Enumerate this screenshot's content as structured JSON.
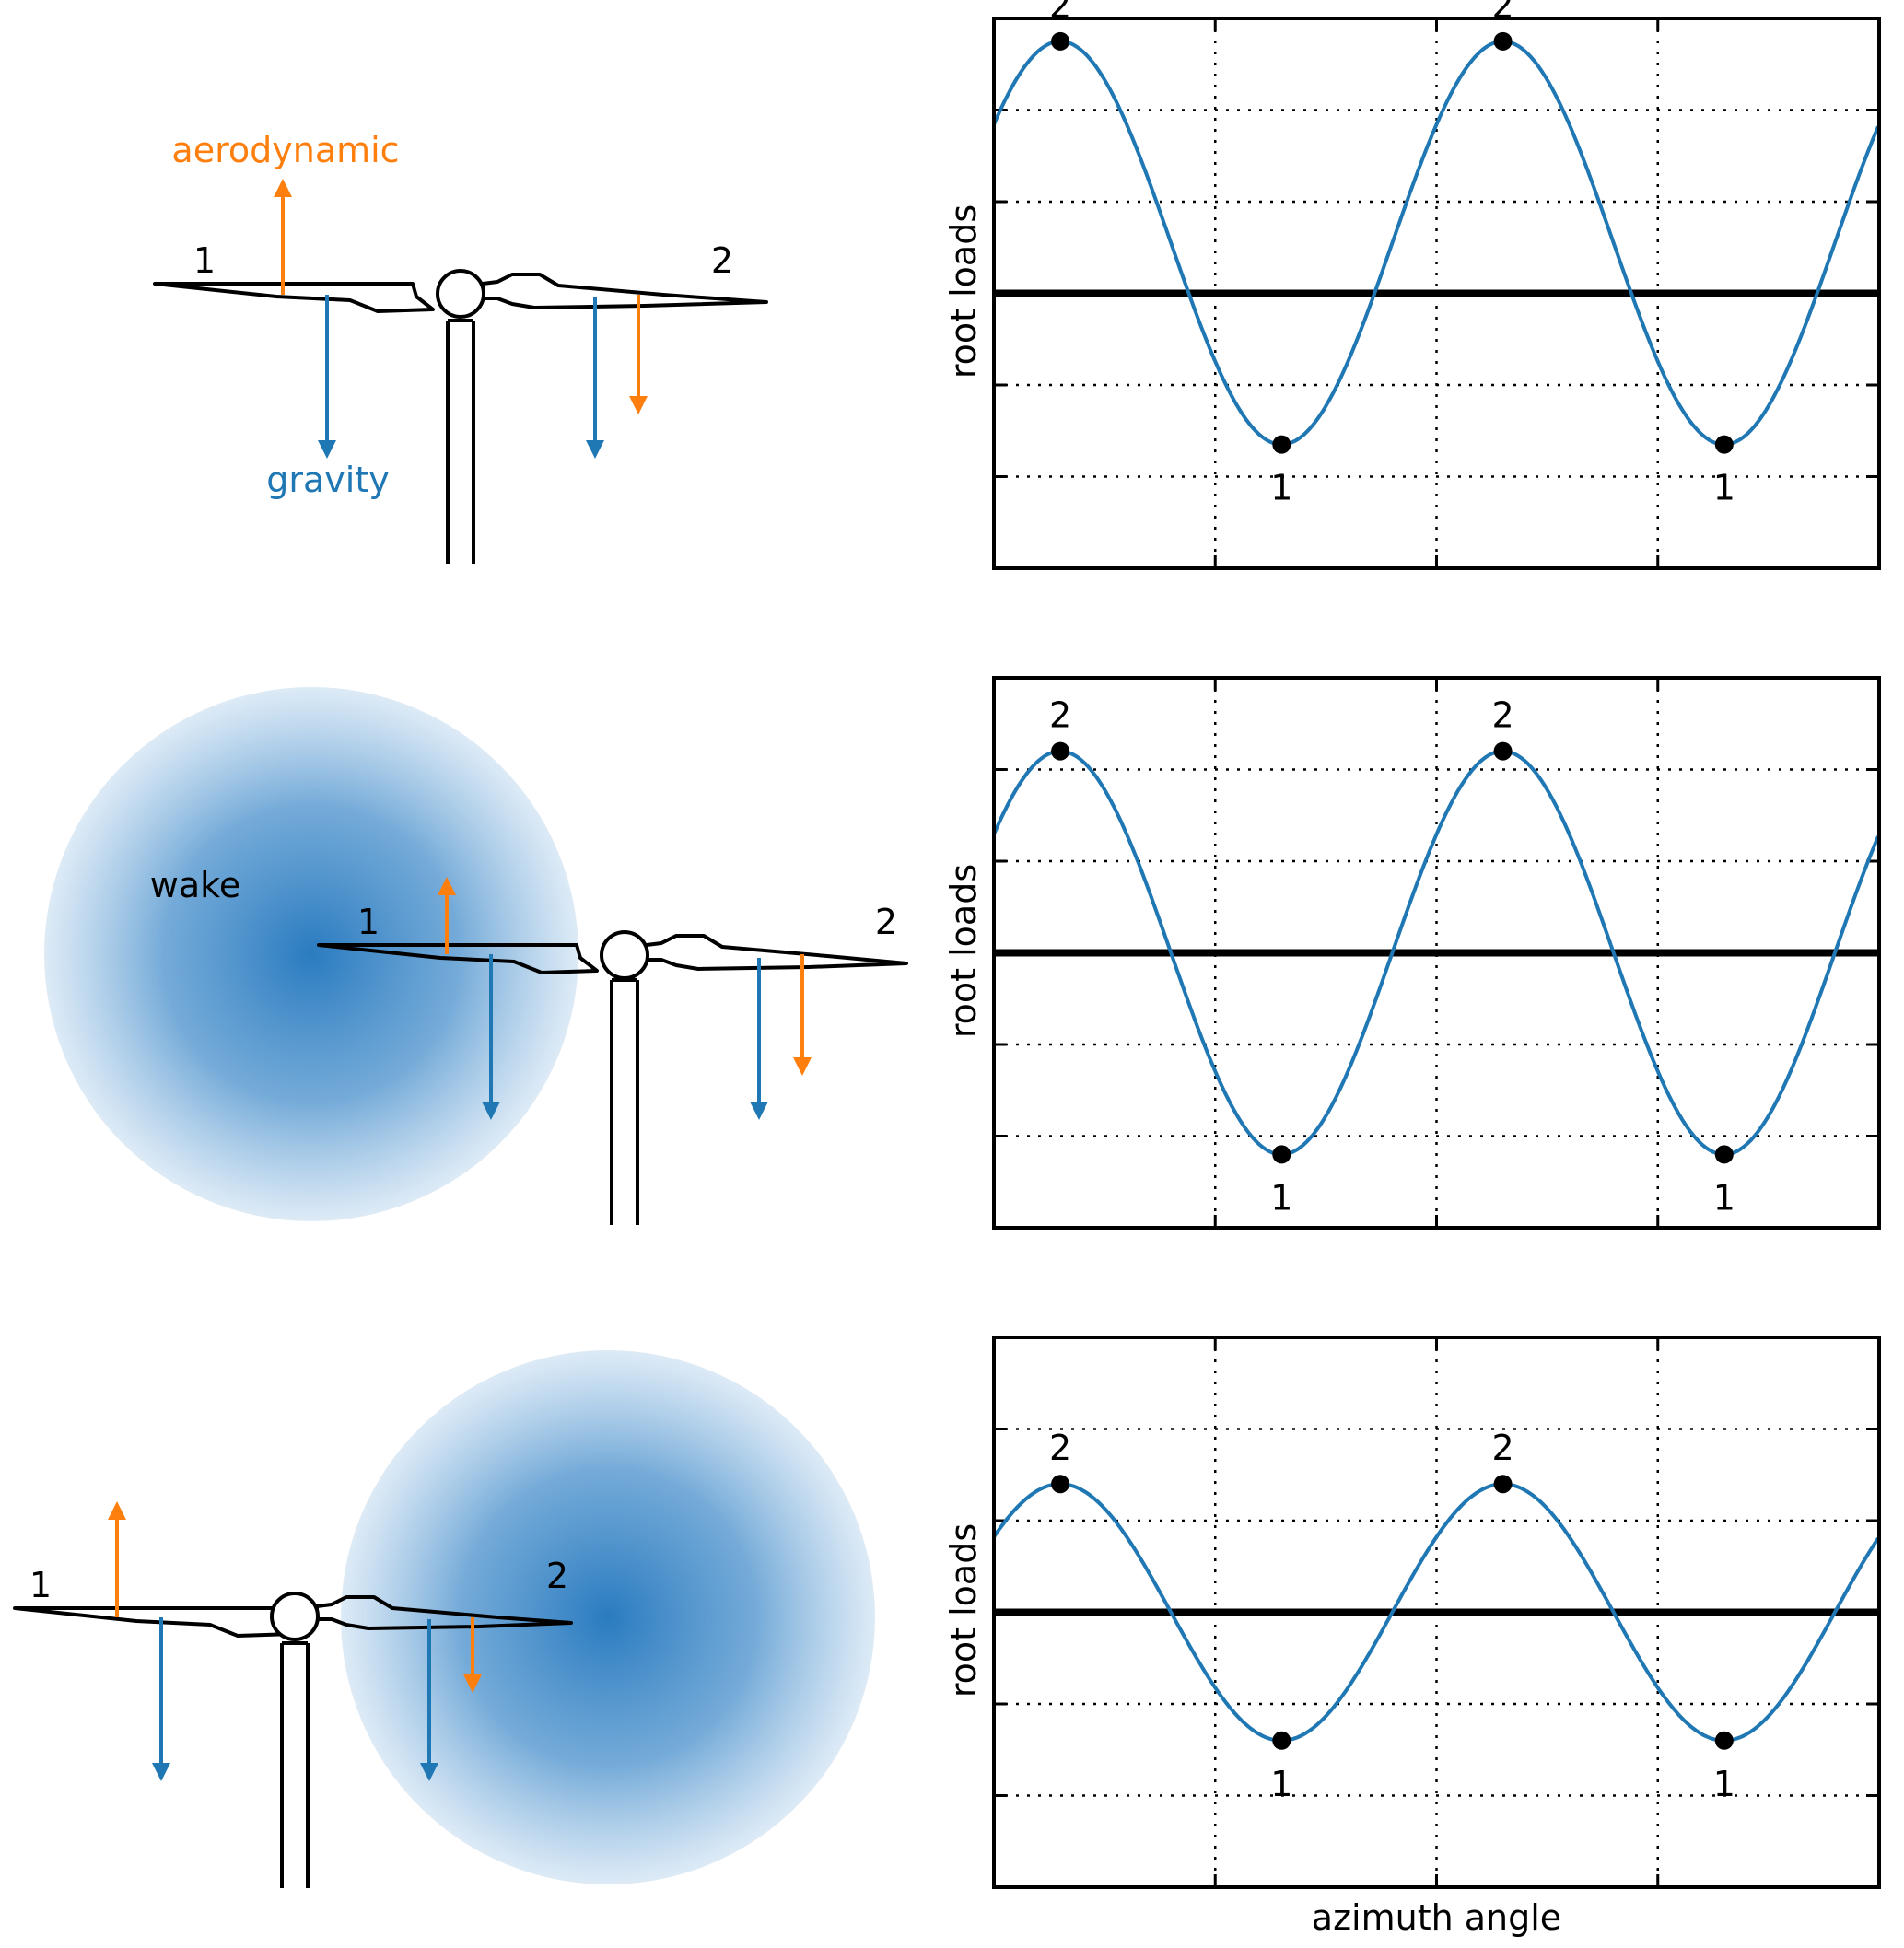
{
  "colors": {
    "aerodynamic": "#ff7f0e",
    "gravity": "#1f77b4",
    "signal": "#1f77b4",
    "ink": "#000000",
    "wake_core": "#2a7bc0"
  },
  "labels": {
    "aerodynamic": "aerodynamic",
    "gravity": "gravity",
    "wake": "wake",
    "blade_1": "1",
    "blade_2": "2"
  },
  "chart_data": [
    {
      "type": "line",
      "ylabel": "root loads",
      "xlabel": "",
      "grid": true,
      "y_ticks": [
        -2,
        -1,
        1,
        2
      ],
      "ylim": [
        -3,
        3
      ],
      "baseline": 0,
      "x_cycles": 2,
      "amplitude": 2.2,
      "offset": 0.55,
      "markers": [
        {
          "label": "2",
          "kind": "max"
        },
        {
          "label": "1",
          "kind": "min"
        },
        {
          "label": "2",
          "kind": "max"
        },
        {
          "label": "1",
          "kind": "min"
        }
      ]
    },
    {
      "type": "line",
      "ylabel": "root loads",
      "xlabel": "",
      "grid": true,
      "y_ticks": [
        -2,
        -1,
        1,
        2
      ],
      "ylim": [
        -3,
        3
      ],
      "baseline": 0,
      "x_cycles": 2,
      "amplitude": 2.2,
      "offset": 0,
      "markers": [
        {
          "label": "2",
          "kind": "max"
        },
        {
          "label": "1",
          "kind": "min"
        },
        {
          "label": "2",
          "kind": "max"
        },
        {
          "label": "1",
          "kind": "min"
        }
      ]
    },
    {
      "type": "line",
      "ylabel": "root loads",
      "xlabel": "azimuth angle",
      "grid": true,
      "y_ticks": [
        -2,
        -1,
        1,
        2
      ],
      "ylim": [
        -3,
        3
      ],
      "baseline": 0,
      "x_cycles": 2,
      "amplitude": 1.4,
      "offset": 0,
      "markers": [
        {
          "label": "2",
          "kind": "max"
        },
        {
          "label": "1",
          "kind": "min"
        },
        {
          "label": "2",
          "kind": "max"
        },
        {
          "label": "1",
          "kind": "min"
        }
      ]
    }
  ]
}
